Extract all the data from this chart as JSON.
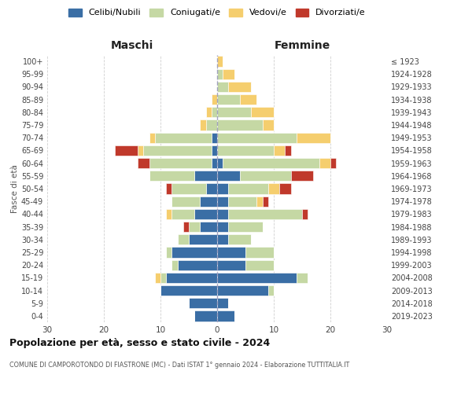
{
  "age_groups": [
    "0-4",
    "5-9",
    "10-14",
    "15-19",
    "20-24",
    "25-29",
    "30-34",
    "35-39",
    "40-44",
    "45-49",
    "50-54",
    "55-59",
    "60-64",
    "65-69",
    "70-74",
    "75-79",
    "80-84",
    "85-89",
    "90-94",
    "95-99",
    "100+"
  ],
  "birth_years": [
    "2019-2023",
    "2014-2018",
    "2009-2013",
    "2004-2008",
    "1999-2003",
    "1994-1998",
    "1989-1993",
    "1984-1988",
    "1979-1983",
    "1974-1978",
    "1969-1973",
    "1964-1968",
    "1959-1963",
    "1954-1958",
    "1949-1953",
    "1944-1948",
    "1939-1943",
    "1934-1938",
    "1929-1933",
    "1924-1928",
    "≤ 1923"
  ],
  "colors": {
    "celibe": "#3A6EA5",
    "coniugato": "#C5D8A4",
    "vedovo": "#F5CE6E",
    "divorziato": "#C0392B"
  },
  "maschi": {
    "celibe": [
      4,
      5,
      10,
      9,
      7,
      8,
      5,
      3,
      4,
      3,
      2,
      4,
      1,
      1,
      1,
      0,
      0,
      0,
      0,
      0,
      0
    ],
    "coniugato": [
      0,
      0,
      0,
      1,
      1,
      1,
      2,
      2,
      4,
      5,
      6,
      8,
      11,
      12,
      10,
      2,
      1,
      0,
      0,
      0,
      0
    ],
    "vedovo": [
      0,
      0,
      0,
      1,
      0,
      0,
      0,
      0,
      1,
      0,
      0,
      0,
      0,
      1,
      1,
      1,
      1,
      1,
      0,
      0,
      0
    ],
    "divorziato": [
      0,
      0,
      0,
      0,
      0,
      0,
      0,
      1,
      0,
      0,
      1,
      0,
      2,
      4,
      0,
      0,
      0,
      0,
      0,
      0,
      0
    ]
  },
  "femmine": {
    "celibe": [
      3,
      2,
      9,
      14,
      5,
      5,
      2,
      2,
      2,
      2,
      2,
      4,
      1,
      0,
      0,
      0,
      0,
      0,
      0,
      0,
      0
    ],
    "coniugato": [
      0,
      0,
      1,
      2,
      5,
      5,
      4,
      6,
      13,
      5,
      7,
      9,
      17,
      10,
      14,
      8,
      6,
      4,
      2,
      1,
      0
    ],
    "vedovo": [
      0,
      0,
      0,
      0,
      0,
      0,
      0,
      0,
      0,
      1,
      2,
      0,
      2,
      2,
      6,
      2,
      4,
      3,
      4,
      2,
      1
    ],
    "divorziato": [
      0,
      0,
      0,
      0,
      0,
      0,
      0,
      0,
      1,
      1,
      2,
      4,
      1,
      1,
      0,
      0,
      0,
      0,
      0,
      0,
      0
    ]
  },
  "xlim": 30,
  "title": "Popolazione per età, sesso e stato civile - 2024",
  "subtitle": "COMUNE DI CAMPOROTONDO DI FIASTRONE (MC) - Dati ISTAT 1° gennaio 2024 - Elaborazione TUTTITALIA.IT",
  "ylabel_left": "Fasce di età",
  "xlabel_left": "Maschi",
  "xlabel_right": "Femmine",
  "legend_labels": [
    "Celibi/Nubili",
    "Coniugati/e",
    "Vedovi/e",
    "Divorziati/e"
  ],
  "bg_color": "#FFFFFF",
  "grid_color": "#BBBBBB"
}
